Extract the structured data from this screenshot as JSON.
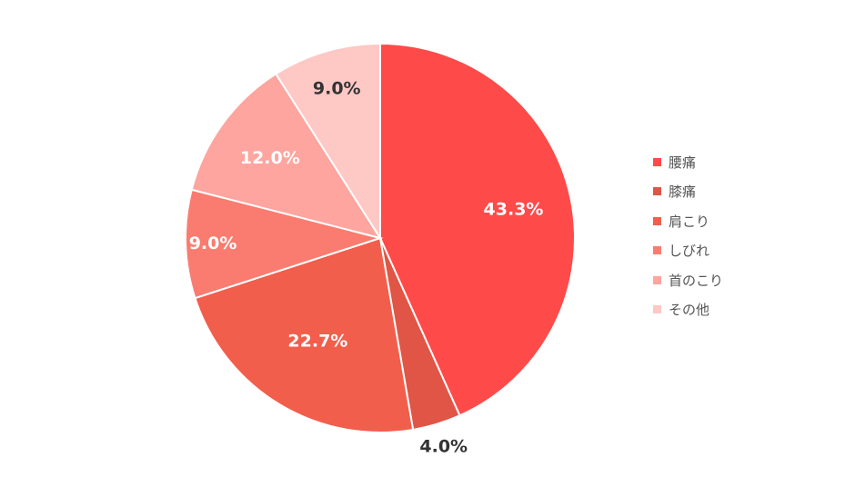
{
  "chart_data": {
    "type": "pie",
    "categories": [
      "腰痛",
      "膝痛",
      "肩こり",
      "しびれ",
      "首のこり",
      "その他"
    ],
    "values": [
      43.3,
      4.0,
      22.7,
      9.0,
      12.0,
      9.0
    ],
    "labels": [
      "43.3%",
      "4.0%",
      "22.7%",
      "9.0%",
      "12.0%",
      "9.0%"
    ],
    "colors": [
      "#FF4A4A",
      "#E05545",
      "#F25E4C",
      "#FA7C70",
      "#FDA59E",
      "#FEC8C5"
    ],
    "label_colors": [
      "#ffffff",
      "#333333",
      "#ffffff",
      "#ffffff",
      "#ffffff",
      "#333333"
    ],
    "start_angle_deg": 0,
    "direction": "clockwise",
    "legend_position": "right"
  }
}
